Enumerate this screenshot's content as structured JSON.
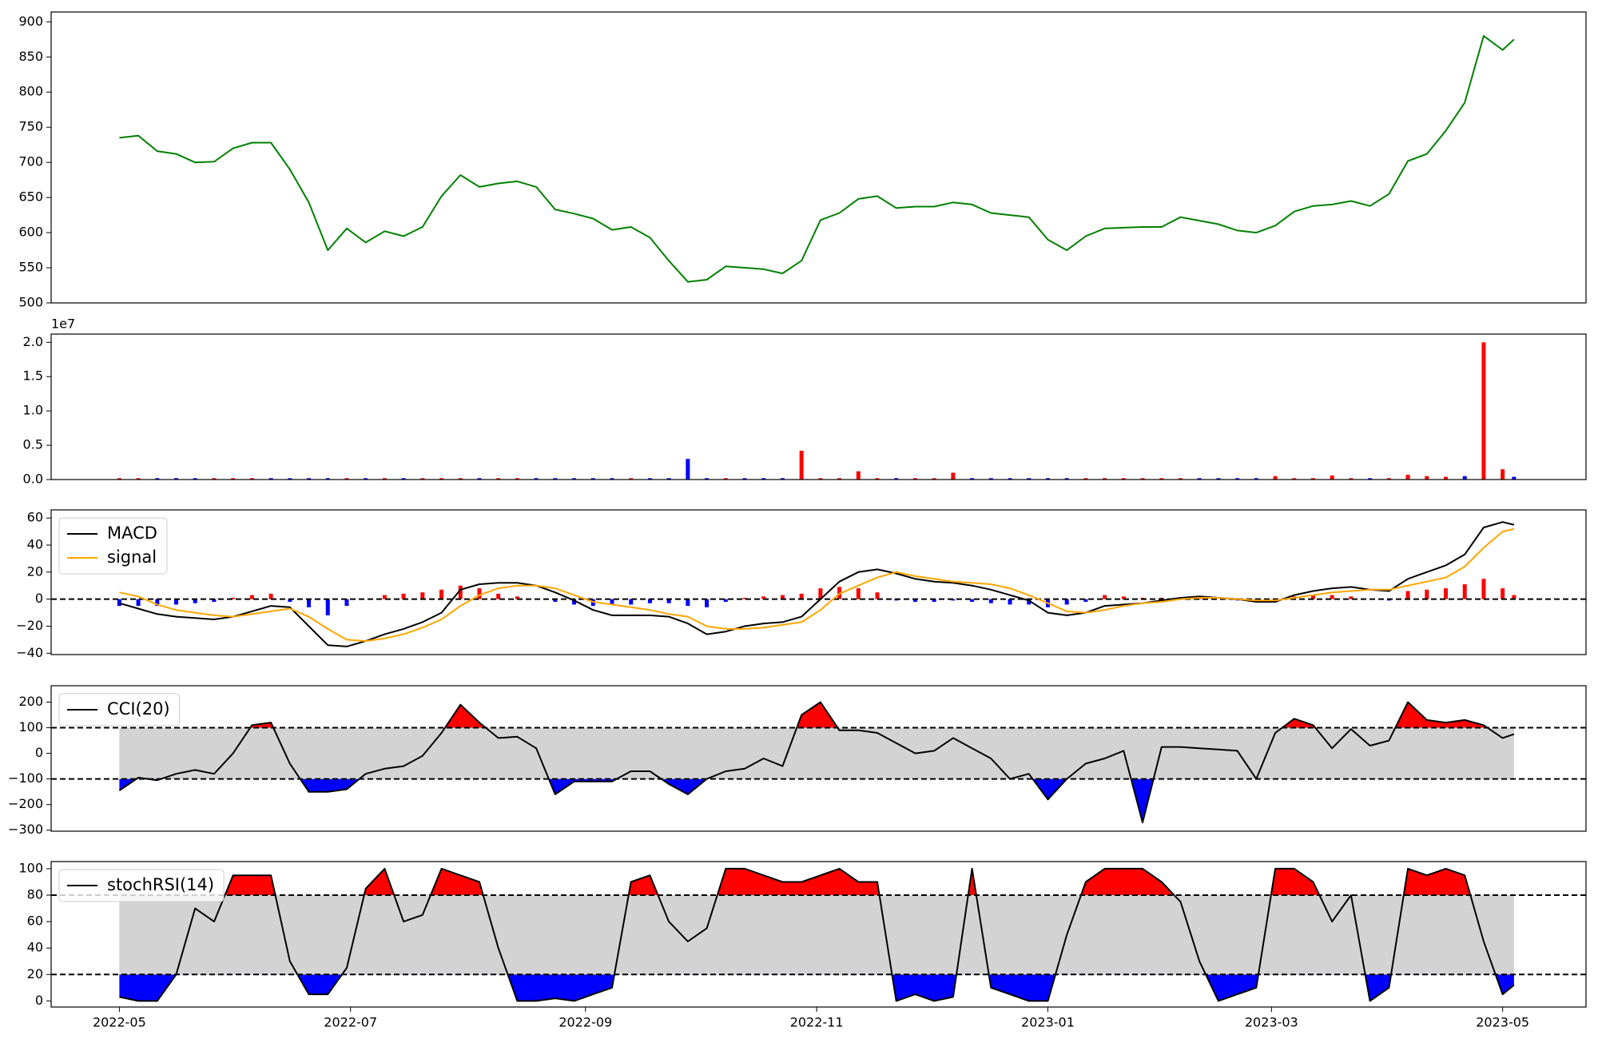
{
  "chart_data": [
    {
      "type": "line",
      "xlim": [
        -18,
        387
      ],
      "ylim": [
        500,
        914
      ],
      "yticks": [
        500,
        550,
        600,
        650,
        700,
        750,
        800,
        850,
        900
      ],
      "x": [
        0,
        5,
        10,
        15,
        20,
        25,
        30,
        35,
        40,
        45,
        50,
        55,
        60,
        65,
        70,
        75,
        80,
        85,
        90,
        95,
        100,
        105,
        110,
        115,
        120,
        125,
        130,
        135,
        140,
        145,
        150,
        155,
        160,
        165,
        170,
        175,
        180,
        185,
        190,
        195,
        200,
        205,
        210,
        215,
        220,
        225,
        230,
        235,
        240,
        245,
        250,
        255,
        260,
        265,
        270,
        275,
        280,
        285,
        290,
        295,
        300,
        305,
        310,
        315,
        320,
        325,
        330,
        335,
        340,
        345,
        350,
        355,
        360,
        365,
        368
      ],
      "series": [
        {
          "color": "#008000",
          "values": [
            735,
            738,
            716,
            712,
            700,
            701,
            720,
            728,
            728,
            690,
            643,
            575,
            606,
            586,
            602,
            595,
            608,
            652,
            682,
            665,
            670,
            673,
            665,
            633,
            627,
            620,
            604,
            608,
            593,
            560,
            530,
            533,
            552,
            550,
            548,
            542,
            560,
            618,
            628,
            648,
            652,
            635,
            637,
            637,
            643,
            640,
            628,
            625,
            622,
            590,
            575,
            595,
            606,
            607,
            608,
            608,
            622,
            617,
            612,
            603,
            600,
            610,
            630,
            638,
            640,
            645,
            638,
            655,
            702,
            712,
            745,
            785,
            880,
            860,
            875
          ]
        }
      ]
    },
    {
      "type": "bar",
      "xlim": [
        -18,
        387
      ],
      "ylim": [
        0,
        21200000
      ],
      "offset_label": "1e7",
      "yticks": [
        {
          "value": 0,
          "label": "0.0"
        },
        {
          "value": 5000000,
          "label": "0.5"
        },
        {
          "value": 10000000,
          "label": "1.0"
        },
        {
          "value": 15000000,
          "label": "1.5"
        },
        {
          "value": 20000000,
          "label": "2.0"
        }
      ],
      "x": [
        0,
        5,
        10,
        15,
        20,
        25,
        30,
        35,
        40,
        45,
        50,
        55,
        60,
        65,
        70,
        75,
        80,
        85,
        90,
        95,
        100,
        105,
        110,
        115,
        120,
        125,
        130,
        135,
        140,
        145,
        150,
        155,
        160,
        165,
        170,
        175,
        180,
        185,
        190,
        195,
        200,
        205,
        210,
        215,
        220,
        225,
        230,
        235,
        240,
        245,
        250,
        255,
        260,
        265,
        270,
        275,
        280,
        285,
        290,
        295,
        300,
        305,
        310,
        315,
        320,
        325,
        330,
        335,
        340,
        345,
        350,
        355,
        360,
        365,
        368
      ],
      "values": [
        200000,
        200000,
        200000,
        200000,
        200000,
        200000,
        200000,
        200000,
        200000,
        200000,
        200000,
        200000,
        200000,
        200000,
        200000,
        200000,
        200000,
        200000,
        200000,
        200000,
        200000,
        200000,
        200000,
        200000,
        200000,
        200000,
        200000,
        200000,
        200000,
        200000,
        3000000,
        200000,
        200000,
        200000,
        200000,
        200000,
        4200000,
        200000,
        200000,
        1200000,
        200000,
        200000,
        200000,
        200000,
        1000000,
        200000,
        200000,
        200000,
        200000,
        200000,
        200000,
        200000,
        200000,
        200000,
        200000,
        200000,
        200000,
        200000,
        200000,
        200000,
        200000,
        500000,
        200000,
        200000,
        600000,
        200000,
        200000,
        200000,
        700000,
        500000,
        400000,
        500000,
        20000000,
        1500000,
        400000
      ],
      "bar_colors": [
        "red",
        "red",
        "blue",
        "blue",
        "blue",
        "red",
        "red",
        "red",
        "blue",
        "blue",
        "blue",
        "blue",
        "red",
        "blue",
        "red",
        "blue",
        "red",
        "red",
        "red",
        "blue",
        "red",
        "red",
        "blue",
        "blue",
        "blue",
        "blue",
        "blue",
        "red",
        "blue",
        "blue",
        "blue",
        "blue",
        "red",
        "blue",
        "blue",
        "blue",
        "red",
        "red",
        "red",
        "red",
        "red",
        "blue",
        "red",
        "red",
        "red",
        "blue",
        "blue",
        "blue",
        "blue",
        "blue",
        "blue",
        "red",
        "red",
        "red",
        "red",
        "red",
        "red",
        "blue",
        "blue",
        "blue",
        "blue",
        "red",
        "red",
        "red",
        "red",
        "red",
        "blue",
        "red",
        "red",
        "red",
        "red",
        "blue",
        "red",
        "red",
        "blue"
      ]
    },
    {
      "type": "macd",
      "xlim": [
        -18,
        387
      ],
      "ylim": [
        -41,
        66
      ],
      "hline": 0,
      "yticks": [
        {
          "value": -40,
          "label": "−40"
        },
        {
          "value": -20,
          "label": "−20"
        },
        0,
        20,
        40,
        60
      ],
      "x": [
        0,
        5,
        10,
        15,
        20,
        25,
        30,
        35,
        40,
        45,
        50,
        55,
        60,
        65,
        70,
        75,
        80,
        85,
        90,
        95,
        100,
        105,
        110,
        115,
        120,
        125,
        130,
        135,
        140,
        145,
        150,
        155,
        160,
        165,
        170,
        175,
        180,
        185,
        190,
        195,
        200,
        205,
        210,
        215,
        220,
        225,
        230,
        235,
        240,
        245,
        250,
        255,
        260,
        265,
        270,
        275,
        280,
        285,
        290,
        295,
        300,
        305,
        310,
        315,
        320,
        325,
        330,
        335,
        340,
        345,
        350,
        355,
        360,
        365,
        368
      ],
      "series": [
        {
          "name": "MACD",
          "color": "black",
          "values": [
            -3,
            -7,
            -11,
            -13,
            -14,
            -15,
            -13,
            -9,
            -5,
            -6,
            -20,
            -34,
            -35,
            -31,
            -26,
            -22,
            -17,
            -10,
            7,
            11,
            12,
            12,
            10,
            5,
            -1,
            -8,
            -12,
            -12,
            -12,
            -13,
            -18,
            -26,
            -24,
            -20,
            -18,
            -17,
            -13,
            0,
            13,
            20,
            22,
            19,
            15,
            13,
            12,
            10,
            7,
            3,
            -1,
            -10,
            -12,
            -10,
            -5,
            -4,
            -3,
            -1,
            1,
            2,
            1,
            0,
            -2,
            -2,
            3,
            6,
            8,
            9,
            7,
            6,
            15,
            20,
            25,
            33,
            53,
            57,
            55
          ]
        },
        {
          "name": "signal",
          "color": "orange",
          "values": [
            5,
            2,
            -4,
            -8,
            -10,
            -12,
            -13,
            -11,
            -9,
            -7,
            -13,
            -22,
            -30,
            -31,
            -29,
            -26,
            -21,
            -15,
            -5,
            3,
            8,
            10,
            10,
            8,
            3,
            -2,
            -4,
            -6,
            -8,
            -11,
            -13,
            -20,
            -22,
            -22,
            -21,
            -19,
            -17,
            -8,
            4,
            10,
            16,
            20,
            17,
            15,
            13,
            12,
            11,
            8,
            3,
            -3,
            -9,
            -10,
            -8,
            -5,
            -3,
            -2,
            0,
            1,
            1,
            0,
            -1,
            -1,
            1,
            3,
            5,
            6,
            7,
            7,
            10,
            13,
            16,
            24,
            38,
            50,
            52
          ]
        }
      ],
      "histogram": {
        "positive_color": "red",
        "negative_color": "blue",
        "values": [
          -5,
          -5,
          -5,
          -4,
          -3,
          -2,
          1,
          3,
          4,
          -2,
          -6,
          -12,
          -5,
          0,
          3,
          4,
          5,
          7,
          10,
          8,
          4,
          2,
          0,
          -2,
          -4,
          -5,
          -4,
          -4,
          -3,
          -3,
          -5,
          -6,
          -2,
          1,
          2,
          3,
          4,
          8,
          9,
          8,
          5,
          -1,
          -2,
          -2,
          -1,
          -2,
          -3,
          -4,
          -4,
          -6,
          -4,
          -2,
          3,
          2,
          1,
          1,
          1,
          1,
          0,
          -1,
          -1,
          -1,
          2,
          3,
          3,
          2,
          0,
          -1,
          6,
          7,
          8,
          11,
          15,
          8,
          3
        ]
      }
    },
    {
      "type": "oscillator",
      "xlim": [
        -18,
        387
      ],
      "ylim": [
        -304,
        264
      ],
      "band": [
        -100,
        100
      ],
      "band_color": "lightgray",
      "above_color": "red",
      "below_color": "blue",
      "yticks": [
        {
          "value": -300,
          "label": "−300"
        },
        {
          "value": -200,
          "label": "−200"
        },
        {
          "value": -100,
          "label": "−100"
        },
        0,
        100,
        200
      ],
      "x": [
        0,
        5,
        10,
        15,
        20,
        25,
        30,
        35,
        40,
        45,
        50,
        55,
        60,
        65,
        70,
        75,
        80,
        85,
        90,
        95,
        100,
        105,
        110,
        115,
        120,
        125,
        130,
        135,
        140,
        145,
        150,
        155,
        160,
        165,
        170,
        175,
        180,
        185,
        190,
        195,
        200,
        205,
        210,
        215,
        220,
        225,
        230,
        235,
        240,
        245,
        250,
        255,
        260,
        265,
        270,
        275,
        280,
        285,
        290,
        295,
        300,
        305,
        310,
        315,
        320,
        325,
        330,
        335,
        340,
        345,
        350,
        355,
        360,
        365,
        368
      ],
      "series": [
        {
          "name": "CCI(20)",
          "color": "black",
          "values": [
            -145,
            -95,
            -105,
            -80,
            -65,
            -80,
            0,
            110,
            120,
            -40,
            -150,
            -150,
            -140,
            -80,
            -60,
            -50,
            -10,
            80,
            190,
            120,
            60,
            65,
            20,
            -160,
            -110,
            -110,
            -110,
            -70,
            -70,
            -120,
            -160,
            -100,
            -70,
            -60,
            -20,
            -50,
            150,
            200,
            90,
            90,
            80,
            40,
            0,
            10,
            60,
            20,
            -20,
            -100,
            -80,
            -180,
            -100,
            -40,
            -20,
            10,
            -270,
            25,
            25,
            20,
            15,
            10,
            -100,
            80,
            135,
            110,
            20,
            95,
            30,
            50,
            200,
            130,
            120,
            130,
            110,
            60,
            75
          ]
        }
      ]
    },
    {
      "type": "oscillator",
      "xlim": [
        -18,
        387
      ],
      "ylim": [
        -4.6,
        105.4
      ],
      "band": [
        20,
        80
      ],
      "band_color": "lightgray",
      "above_color": "red",
      "below_color": "blue",
      "yticks": [
        0,
        20,
        40,
        60,
        80,
        100
      ],
      "xticks": [
        {
          "value": 0,
          "label": "2022-05"
        },
        {
          "value": 61,
          "label": "2022-07"
        },
        {
          "value": 123,
          "label": "2022-09"
        },
        {
          "value": 184,
          "label": "2022-11"
        },
        {
          "value": 245,
          "label": "2023-01"
        },
        {
          "value": 304,
          "label": "2023-03"
        },
        {
          "value": 365,
          "label": "2023-05"
        }
      ],
      "x": [
        0,
        5,
        10,
        15,
        20,
        25,
        30,
        35,
        40,
        45,
        50,
        55,
        60,
        65,
        70,
        75,
        80,
        85,
        90,
        95,
        100,
        105,
        110,
        115,
        120,
        125,
        130,
        135,
        140,
        145,
        150,
        155,
        160,
        165,
        170,
        175,
        180,
        185,
        190,
        195,
        200,
        205,
        210,
        215,
        220,
        225,
        230,
        235,
        240,
        245,
        250,
        255,
        260,
        265,
        270,
        275,
        280,
        285,
        290,
        295,
        300,
        305,
        310,
        315,
        320,
        325,
        330,
        335,
        340,
        345,
        350,
        355,
        360,
        365,
        368
      ],
      "series": [
        {
          "name": "stochRSI(14)",
          "color": "black",
          "values": [
            3,
            0,
            0,
            20,
            70,
            60,
            95,
            95,
            95,
            30,
            5,
            5,
            25,
            85,
            100,
            60,
            65,
            100,
            95,
            90,
            40,
            0,
            0,
            2,
            0,
            5,
            10,
            90,
            95,
            60,
            45,
            55,
            100,
            100,
            95,
            90,
            90,
            95,
            100,
            90,
            90,
            0,
            5,
            0,
            3,
            100,
            10,
            5,
            0,
            0,
            50,
            90,
            100,
            100,
            100,
            90,
            75,
            30,
            0,
            5,
            10,
            100,
            100,
            90,
            60,
            80,
            0,
            10,
            100,
            95,
            100,
            95,
            45,
            5,
            12
          ]
        }
      ]
    }
  ]
}
